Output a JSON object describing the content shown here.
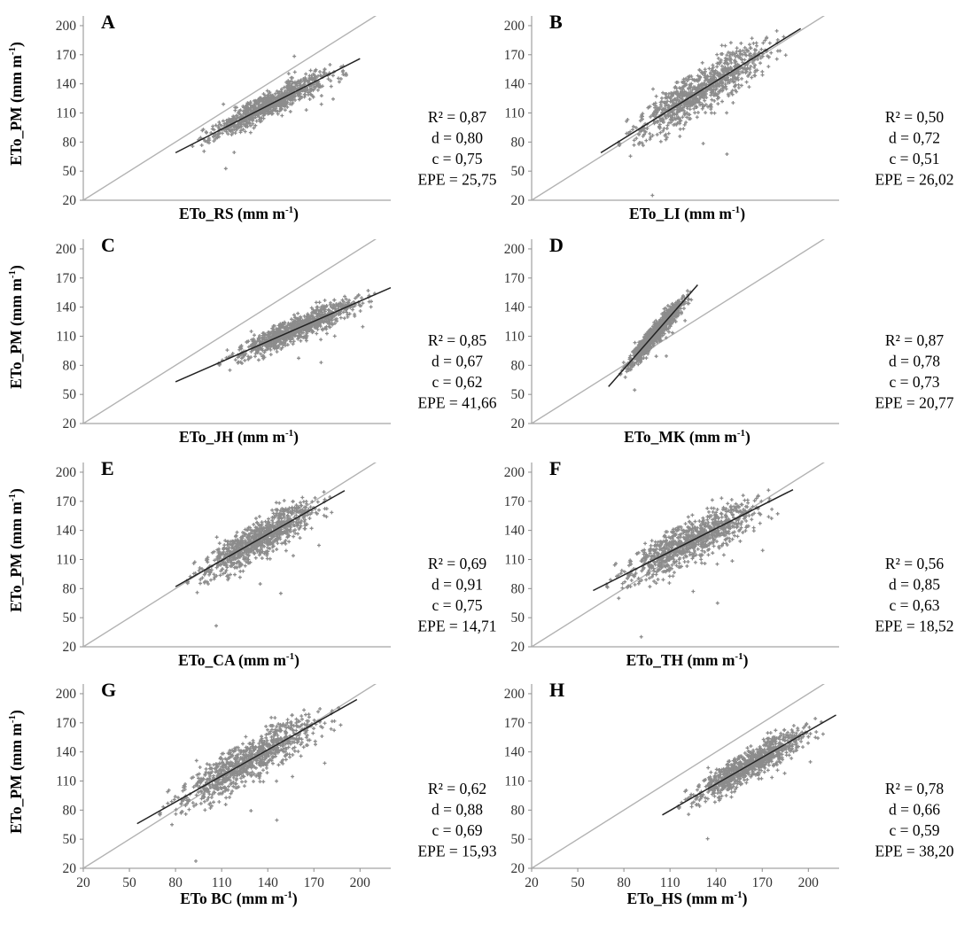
{
  "figure": {
    "ylabel_text": "ETo_PM (mm m",
    "exponent": "-1",
    "axis_ticks": [
      20,
      50,
      80,
      110,
      140,
      170,
      200
    ],
    "x_tick_panels": [
      "G",
      "H"
    ]
  },
  "colors": {
    "points": "#8c8c8c",
    "identity_line": "#b2b2b2",
    "trend_line": "#222222",
    "axis": "#8c8c8c"
  },
  "chart_data": [
    {
      "panel": "A",
      "type": "scatter",
      "xlabel_text": "ETo_RS (mm m",
      "xlim": [
        20,
        220
      ],
      "ylim": [
        20,
        210
      ],
      "cloud": {
        "x_range": [
          85,
          200
        ],
        "slope": 0.82,
        "y_spread": 10
      },
      "trend": {
        "x": [
          80,
          200
        ],
        "y": [
          69,
          166
        ]
      },
      "stats": [
        "R² = 0,87",
        "d = 0,80",
        "c = 0,75",
        "EPE = 25,75"
      ]
    },
    {
      "panel": "B",
      "type": "scatter",
      "xlabel_text": "ETo_LI (mm m",
      "xlim": [
        20,
        220
      ],
      "ylim": [
        20,
        210
      ],
      "cloud": {
        "x_range": [
          68,
          195
        ],
        "slope": 0.98,
        "y_spread": 18
      },
      "trend": {
        "x": [
          65,
          195
        ],
        "y": [
          69,
          197
        ]
      },
      "stats": [
        "R² = 0,50",
        "d = 0,72",
        "c = 0,51",
        "EPE = 26,02"
      ]
    },
    {
      "panel": "C",
      "type": "scatter",
      "xlabel_text": "ETo_JH (mm m",
      "xlim": [
        20,
        220
      ],
      "ylim": [
        20,
        210
      ],
      "cloud": {
        "x_range": [
          100,
          220
        ],
        "slope": 0.68,
        "y_spread": 10
      },
      "trend": {
        "x": [
          80,
          220
        ],
        "y": [
          63,
          160
        ]
      },
      "stats": [
        "R² = 0,85",
        "d = 0,67",
        "c = 0,62",
        "EPE = 41,66"
      ]
    },
    {
      "panel": "D",
      "type": "scatter",
      "xlabel_text": "ETo_MK (mm m",
      "xlim": [
        20,
        220
      ],
      "ylim": [
        20,
        210
      ],
      "cloud": {
        "x_range": [
          74,
          128
        ],
        "slope": 1.42,
        "y_spread": 8
      },
      "trend": {
        "x": [
          70,
          128
        ],
        "y": [
          58,
          163
        ]
      },
      "stats": [
        "R² = 0,87",
        "d = 0,78",
        "c = 0,73",
        "EPE = 20,77"
      ]
    },
    {
      "panel": "E",
      "type": "scatter",
      "xlabel_text": "ETo_CA (mm m",
      "xlim": [
        20,
        220
      ],
      "ylim": [
        20,
        210
      ],
      "cloud": {
        "x_range": [
          80,
          190
        ],
        "slope": 0.92,
        "y_spread": 15
      },
      "trend": {
        "x": [
          80,
          190
        ],
        "y": [
          82,
          181
        ]
      },
      "stats": [
        "R² = 0,69",
        "d = 0,91",
        "c = 0,75",
        "EPE = 14,71"
      ]
    },
    {
      "panel": "F",
      "type": "scatter",
      "xlabel_text": "ETo_TH (mm m",
      "xlim": [
        20,
        220
      ],
      "ylim": [
        20,
        210
      ],
      "cloud": {
        "x_range": [
          60,
          190
        ],
        "slope": 0.75,
        "y_spread": 17
      },
      "trend": {
        "x": [
          60,
          190
        ],
        "y": [
          78,
          182
        ]
      },
      "stats": [
        "R² = 0,56",
        "d = 0,85",
        "c = 0,63",
        "EPE = 18,52"
      ]
    },
    {
      "panel": "G",
      "type": "scatter",
      "xlabel_text": "ETo  BC (mm m",
      "xlim": [
        20,
        220
      ],
      "ylim": [
        20,
        210
      ],
      "cloud": {
        "x_range": [
          60,
          198
        ],
        "slope": 0.98,
        "y_spread": 17
      },
      "trend": {
        "x": [
          55,
          198
        ],
        "y": [
          66,
          194
        ]
      },
      "stats": [
        "R² = 0,62",
        "d = 0,88",
        "c = 0,69",
        "EPE = 15,93"
      ]
    },
    {
      "panel": "H",
      "type": "scatter",
      "xlabel_text": "ETo_HS (mm m",
      "xlim": [
        20,
        220
      ],
      "ylim": [
        20,
        210
      ],
      "cloud": {
        "x_range": [
          108,
          218
        ],
        "slope": 0.95,
        "y_spread": 12
      },
      "trend": {
        "x": [
          105,
          218
        ],
        "y": [
          75,
          178
        ]
      },
      "stats": [
        "R² = 0,78",
        "d = 0,66",
        "c = 0,59",
        "EPE = 38,20"
      ]
    }
  ]
}
